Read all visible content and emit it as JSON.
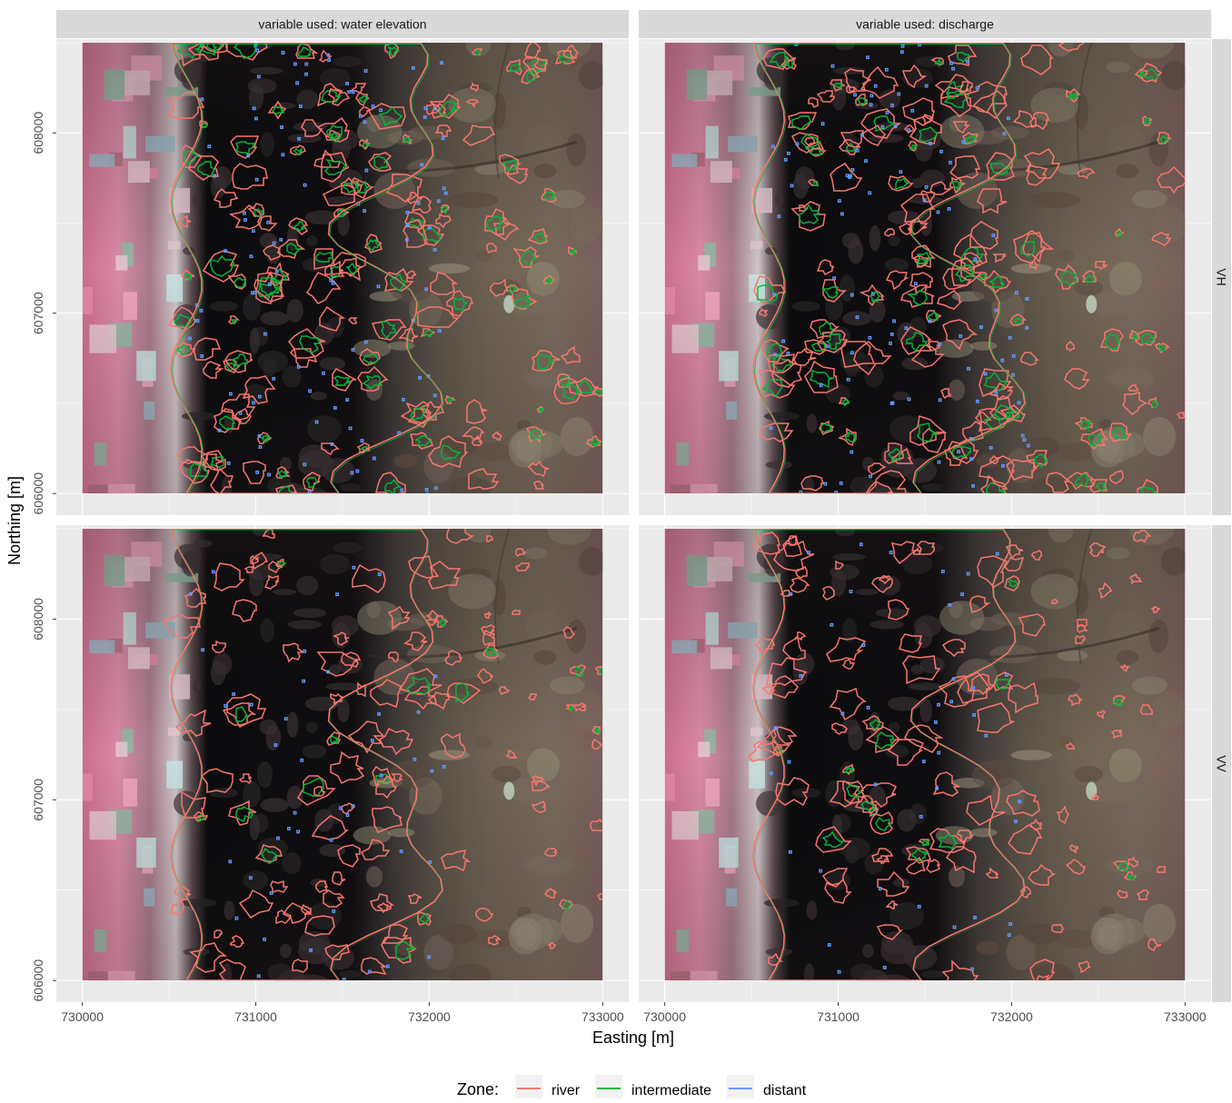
{
  "chart_data": {
    "type": "other",
    "description_of_marks": "faceted map panels with satellite background and zone contour lines",
    "facet_columns": [
      "variable used: water elevation",
      "variable used: discharge"
    ],
    "facet_rows": [
      "VH",
      "VV"
    ],
    "xlabel": "Easting [m]",
    "ylabel": "Northing [m]",
    "x_ticks": [
      730000,
      731000,
      732000,
      733000
    ],
    "x_tick_labels": [
      "730000",
      "731000",
      "732000",
      "733000"
    ],
    "y_ticks": [
      606000,
      607000,
      608000
    ],
    "y_tick_labels": [
      "606000",
      "607000",
      "608000"
    ],
    "xlim": [
      729850,
      733150
    ],
    "ylim": [
      605880,
      608520
    ],
    "raster_extent": {
      "x": [
        730000,
        733000
      ],
      "y": [
        606000,
        608500
      ]
    },
    "grid": true,
    "legend": {
      "title": "Zone:",
      "position": "bottom",
      "items": [
        {
          "label": "river",
          "color": "#f8766d"
        },
        {
          "label": "intermediate",
          "color": "#00ba38"
        },
        {
          "label": "distant",
          "color": "#619cff"
        }
      ]
    }
  },
  "colors": {
    "panel_background": "#ebebeb",
    "strip_background": "#d9d9d9",
    "grid": "#ffffff",
    "river": "#f8766d",
    "intermediate": "#00ba38",
    "distant": "#619cff"
  }
}
